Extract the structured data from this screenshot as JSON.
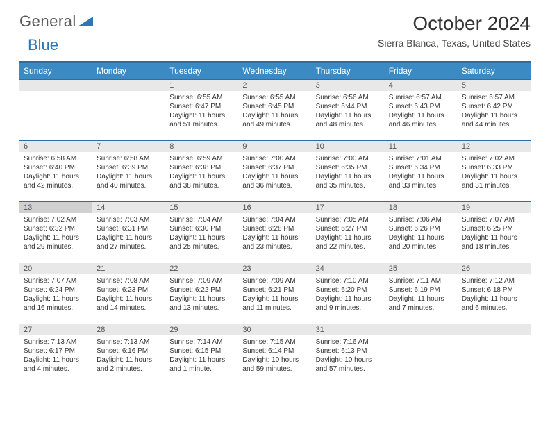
{
  "logo": {
    "text1": "General",
    "text2": "Blue"
  },
  "title": "October 2024",
  "location": "Sierra Blanca, Texas, United States",
  "colors": {
    "header_bg": "#3b8ac4",
    "header_border": "#2e6da4",
    "daybar_bg": "#e8e8e8",
    "daybar_hl": "#d0d0d0",
    "text": "#333333",
    "logo_gray": "#595959",
    "logo_blue": "#2e75b6"
  },
  "day_names": [
    "Sunday",
    "Monday",
    "Tuesday",
    "Wednesday",
    "Thursday",
    "Friday",
    "Saturday"
  ],
  "weeks": [
    [
      null,
      null,
      {
        "n": "1",
        "sr": "Sunrise: 6:55 AM",
        "ss": "Sunset: 6:47 PM",
        "dl": "Daylight: 11 hours and 51 minutes."
      },
      {
        "n": "2",
        "sr": "Sunrise: 6:55 AM",
        "ss": "Sunset: 6:45 PM",
        "dl": "Daylight: 11 hours and 49 minutes."
      },
      {
        "n": "3",
        "sr": "Sunrise: 6:56 AM",
        "ss": "Sunset: 6:44 PM",
        "dl": "Daylight: 11 hours and 48 minutes."
      },
      {
        "n": "4",
        "sr": "Sunrise: 6:57 AM",
        "ss": "Sunset: 6:43 PM",
        "dl": "Daylight: 11 hours and 46 minutes."
      },
      {
        "n": "5",
        "sr": "Sunrise: 6:57 AM",
        "ss": "Sunset: 6:42 PM",
        "dl": "Daylight: 11 hours and 44 minutes."
      }
    ],
    [
      {
        "n": "6",
        "sr": "Sunrise: 6:58 AM",
        "ss": "Sunset: 6:40 PM",
        "dl": "Daylight: 11 hours and 42 minutes."
      },
      {
        "n": "7",
        "sr": "Sunrise: 6:58 AM",
        "ss": "Sunset: 6:39 PM",
        "dl": "Daylight: 11 hours and 40 minutes."
      },
      {
        "n": "8",
        "sr": "Sunrise: 6:59 AM",
        "ss": "Sunset: 6:38 PM",
        "dl": "Daylight: 11 hours and 38 minutes."
      },
      {
        "n": "9",
        "sr": "Sunrise: 7:00 AM",
        "ss": "Sunset: 6:37 PM",
        "dl": "Daylight: 11 hours and 36 minutes."
      },
      {
        "n": "10",
        "sr": "Sunrise: 7:00 AM",
        "ss": "Sunset: 6:35 PM",
        "dl": "Daylight: 11 hours and 35 minutes."
      },
      {
        "n": "11",
        "sr": "Sunrise: 7:01 AM",
        "ss": "Sunset: 6:34 PM",
        "dl": "Daylight: 11 hours and 33 minutes."
      },
      {
        "n": "12",
        "sr": "Sunrise: 7:02 AM",
        "ss": "Sunset: 6:33 PM",
        "dl": "Daylight: 11 hours and 31 minutes."
      }
    ],
    [
      {
        "n": "13",
        "hl": true,
        "sr": "Sunrise: 7:02 AM",
        "ss": "Sunset: 6:32 PM",
        "dl": "Daylight: 11 hours and 29 minutes."
      },
      {
        "n": "14",
        "sr": "Sunrise: 7:03 AM",
        "ss": "Sunset: 6:31 PM",
        "dl": "Daylight: 11 hours and 27 minutes."
      },
      {
        "n": "15",
        "sr": "Sunrise: 7:04 AM",
        "ss": "Sunset: 6:30 PM",
        "dl": "Daylight: 11 hours and 25 minutes."
      },
      {
        "n": "16",
        "sr": "Sunrise: 7:04 AM",
        "ss": "Sunset: 6:28 PM",
        "dl": "Daylight: 11 hours and 23 minutes."
      },
      {
        "n": "17",
        "sr": "Sunrise: 7:05 AM",
        "ss": "Sunset: 6:27 PM",
        "dl": "Daylight: 11 hours and 22 minutes."
      },
      {
        "n": "18",
        "sr": "Sunrise: 7:06 AM",
        "ss": "Sunset: 6:26 PM",
        "dl": "Daylight: 11 hours and 20 minutes."
      },
      {
        "n": "19",
        "sr": "Sunrise: 7:07 AM",
        "ss": "Sunset: 6:25 PM",
        "dl": "Daylight: 11 hours and 18 minutes."
      }
    ],
    [
      {
        "n": "20",
        "sr": "Sunrise: 7:07 AM",
        "ss": "Sunset: 6:24 PM",
        "dl": "Daylight: 11 hours and 16 minutes."
      },
      {
        "n": "21",
        "sr": "Sunrise: 7:08 AM",
        "ss": "Sunset: 6:23 PM",
        "dl": "Daylight: 11 hours and 14 minutes."
      },
      {
        "n": "22",
        "sr": "Sunrise: 7:09 AM",
        "ss": "Sunset: 6:22 PM",
        "dl": "Daylight: 11 hours and 13 minutes."
      },
      {
        "n": "23",
        "sr": "Sunrise: 7:09 AM",
        "ss": "Sunset: 6:21 PM",
        "dl": "Daylight: 11 hours and 11 minutes."
      },
      {
        "n": "24",
        "sr": "Sunrise: 7:10 AM",
        "ss": "Sunset: 6:20 PM",
        "dl": "Daylight: 11 hours and 9 minutes."
      },
      {
        "n": "25",
        "sr": "Sunrise: 7:11 AM",
        "ss": "Sunset: 6:19 PM",
        "dl": "Daylight: 11 hours and 7 minutes."
      },
      {
        "n": "26",
        "sr": "Sunrise: 7:12 AM",
        "ss": "Sunset: 6:18 PM",
        "dl": "Daylight: 11 hours and 6 minutes."
      }
    ],
    [
      {
        "n": "27",
        "sr": "Sunrise: 7:13 AM",
        "ss": "Sunset: 6:17 PM",
        "dl": "Daylight: 11 hours and 4 minutes."
      },
      {
        "n": "28",
        "sr": "Sunrise: 7:13 AM",
        "ss": "Sunset: 6:16 PM",
        "dl": "Daylight: 11 hours and 2 minutes."
      },
      {
        "n": "29",
        "sr": "Sunrise: 7:14 AM",
        "ss": "Sunset: 6:15 PM",
        "dl": "Daylight: 11 hours and 1 minute."
      },
      {
        "n": "30",
        "sr": "Sunrise: 7:15 AM",
        "ss": "Sunset: 6:14 PM",
        "dl": "Daylight: 10 hours and 59 minutes."
      },
      {
        "n": "31",
        "sr": "Sunrise: 7:16 AM",
        "ss": "Sunset: 6:13 PM",
        "dl": "Daylight: 10 hours and 57 minutes."
      },
      null,
      null
    ]
  ]
}
